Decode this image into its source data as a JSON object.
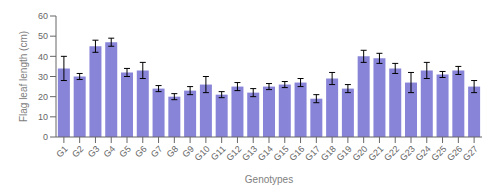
{
  "chart_data": {
    "type": "bar",
    "xlabel": "Genotypes",
    "ylabel": "Flag leaf length (cm)",
    "categories": [
      "G1",
      "G2",
      "G3",
      "G4",
      "G5",
      "G6",
      "G7",
      "G8",
      "G9",
      "G10",
      "G11",
      "G12",
      "G13",
      "G14",
      "G15",
      "G16",
      "G17",
      "G18",
      "G19",
      "G20",
      "G21",
      "G22",
      "G23",
      "G24",
      "G25",
      "G26",
      "G27"
    ],
    "values": [
      34,
      30,
      45,
      47,
      32,
      33,
      24,
      20,
      23,
      26,
      21,
      25,
      22,
      25,
      26,
      27,
      19,
      29,
      24,
      40,
      39,
      34,
      27,
      33,
      31,
      33,
      25
    ],
    "errors": [
      6,
      1.5,
      3,
      2,
      2,
      4,
      1.5,
      1.5,
      2,
      4,
      1.5,
      2,
      2,
      1.5,
      1.5,
      2,
      2,
      3,
      2,
      3,
      2.5,
      2.5,
      5,
      4,
      1.5,
      2,
      3
    ],
    "color": "#8884d8",
    "ylim": [
      0,
      60
    ],
    "yticks": [
      0,
      10,
      20,
      30,
      40,
      50,
      60
    ],
    "grid": false
  }
}
